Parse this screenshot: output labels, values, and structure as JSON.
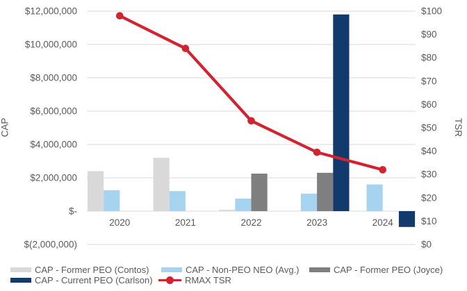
{
  "chart_data": {
    "type": "combo-bar-line",
    "categories": [
      "2020",
      "2021",
      "2022",
      "2023",
      "2024"
    ],
    "bar_series": [
      {
        "name": "CAP - Former PEO (Contos)",
        "color": "#d9d9d9",
        "values": [
          2400000,
          3200000,
          80000,
          0,
          0
        ]
      },
      {
        "name": "CAP - Non-PEO NEO (Avg.)",
        "color": "#a6d4f0",
        "values": [
          1250000,
          1200000,
          750000,
          1050000,
          1600000
        ]
      },
      {
        "name": "CAP - Former PEO (Joyce)",
        "color": "#7f7f7f",
        "values": [
          0,
          0,
          2250000,
          2300000,
          0
        ]
      },
      {
        "name": "CAP - Current PEO (Carlson)",
        "color": "#123a6d",
        "values": [
          0,
          0,
          0,
          11800000,
          -950000
        ]
      }
    ],
    "line_series": {
      "name": "RMAX TSR",
      "color": "#d2232f",
      "values": [
        98,
        84,
        53,
        39.5,
        32
      ]
    },
    "left_axis": {
      "title": "CAP",
      "min": -2000000,
      "max": 12000000,
      "tick_step": 2000000,
      "tick_labels": [
        "$(2,000,000)",
        "$-",
        "$2,000,000",
        "$4,000,000",
        "$6,000,000",
        "$8,000,000",
        "$10,000,000",
        "$12,000,000"
      ]
    },
    "right_axis": {
      "title": "TSR",
      "min": 0,
      "max": 100,
      "tick_step": 10,
      "tick_labels": [
        "$0",
        "$10",
        "$20",
        "$30",
        "$40",
        "$50",
        "$60",
        "$70",
        "$80",
        "$90",
        "$100"
      ]
    },
    "grid": true,
    "gridline_color": "#d9d9d9",
    "text_color": "#595959",
    "legend_position": "bottom-left",
    "legend": [
      {
        "name": "CAP - Former PEO (Contos)",
        "type": "swatch",
        "color": "#d9d9d9"
      },
      {
        "name": "CAP - Non-PEO NEO (Avg.)",
        "type": "swatch",
        "color": "#a6d4f0"
      },
      {
        "name": "CAP - Former PEO (Joyce)",
        "type": "swatch",
        "color": "#7f7f7f"
      },
      {
        "name": "CAP - Current PEO (Carlson)",
        "type": "swatch",
        "color": "#123a6d"
      },
      {
        "name": "RMAX TSR",
        "type": "line-marker",
        "color": "#d2232f"
      }
    ]
  }
}
